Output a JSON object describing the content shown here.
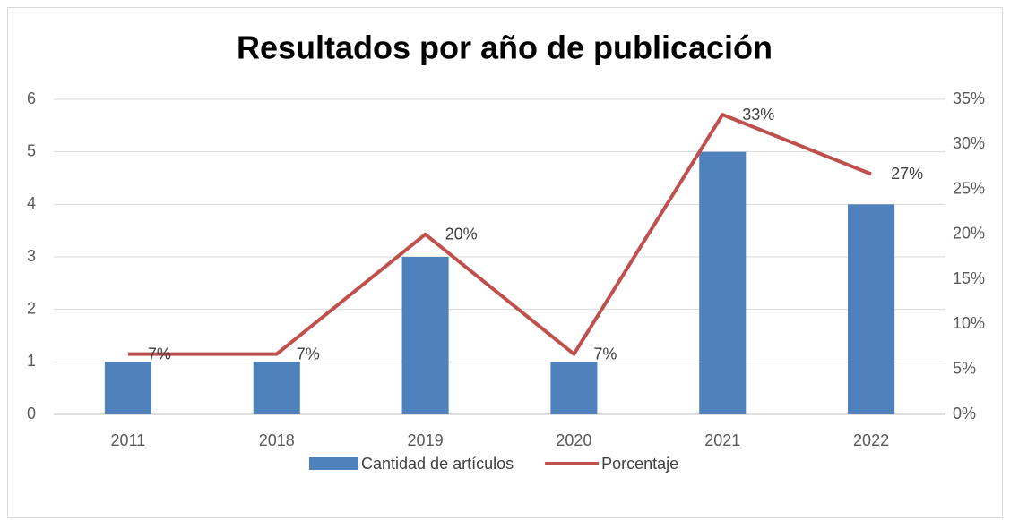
{
  "chart_data": {
    "type": "bar",
    "title": "Resultados por año de publicación",
    "categories": [
      "2011",
      "2018",
      "2019",
      "2020",
      "2021",
      "2022"
    ],
    "series": [
      {
        "name": "Cantidad de artículos",
        "type": "bar",
        "color": "#4f81bd",
        "values": [
          1,
          1,
          3,
          1,
          5,
          4
        ]
      },
      {
        "name": "Porcentaje",
        "type": "line",
        "axis": "y2",
        "color": "#c0504d",
        "values": [
          6.7,
          6.7,
          20,
          6.7,
          33.3,
          26.7
        ],
        "value_labels": [
          "7%",
          "7%",
          "20%",
          "7%",
          "33%",
          "27%"
        ]
      }
    ],
    "ylim": [
      0,
      6
    ],
    "yticks": [
      0,
      1,
      2,
      3,
      4,
      5,
      6
    ],
    "y2lim": [
      0,
      35
    ],
    "y2ticks": [
      {
        "value": 0,
        "label": "0%"
      },
      {
        "value": 5,
        "label": "5%"
      },
      {
        "value": 10,
        "label": "10%"
      },
      {
        "value": 15,
        "label": "15%"
      },
      {
        "value": 20,
        "label": "20%"
      },
      {
        "value": 25,
        "label": "25%"
      },
      {
        "value": 30,
        "label": "30%"
      },
      {
        "value": 35,
        "label": "35%"
      }
    ],
    "grid": true,
    "legend": "bottom"
  }
}
